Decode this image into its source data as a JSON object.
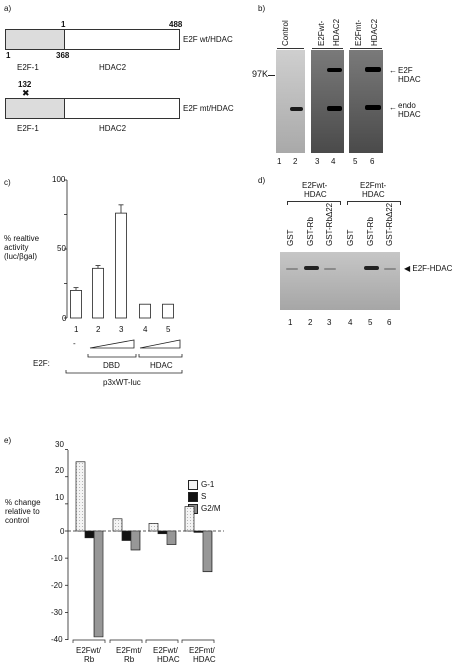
{
  "panel_a": {
    "label": "a)",
    "wt_start": "1",
    "wt_end": "488",
    "wt_junction": "368",
    "wt_start_bottom": "1",
    "wt_left_label": "E2F-1",
    "wt_right_label": "HDAC2",
    "wt_name": "E2F wt/HDAC",
    "mt_mutation": "132",
    "mt_mark": "✖",
    "mt_left_label": "E2F-1",
    "mt_right_label": "HDAC2",
    "mt_name": "E2F mt/HDAC"
  },
  "panel_b": {
    "label": "b)",
    "lanes": [
      "Control",
      "E2Fwt-",
      "HDAC2",
      "E2Fmt-",
      "HDAC2"
    ],
    "marker": "97K",
    "right_label_1a": "E2F",
    "right_label_1b": "HDAC",
    "right_label_2a": "endo",
    "right_label_2b": "HDAC",
    "lane_numbers": [
      "1",
      "2",
      "3",
      "4",
      "5",
      "6"
    ]
  },
  "panel_c": {
    "label": "c)",
    "ylabel": [
      "% realtive",
      "activity",
      "(luc/βgal)"
    ],
    "yticks": [
      "100",
      "50",
      "0"
    ],
    "lane_numbers": [
      "1",
      "2",
      "3",
      "4",
      "5"
    ],
    "dash": "-",
    "e2f_label": "E2F:",
    "group_dbd": "DBD",
    "group_hdac": "HDAC",
    "reporter": "p3xWT-luc",
    "values": [
      20,
      36,
      76,
      10,
      10
    ],
    "errors": [
      2,
      2,
      6,
      0,
      0
    ]
  },
  "panel_d": {
    "label": "d)",
    "group1": [
      "E2Fwt-",
      "HDAC"
    ],
    "group2": [
      "E2Fmt-",
      "HDAC"
    ],
    "lanes": [
      "GST",
      "GST-Rb",
      "GST-RbΔ22",
      "GST",
      "GST-Rb",
      "GST-RbΔ22"
    ],
    "band_label": "◀ E2F-HDAC",
    "lane_numbers": [
      "1",
      "2",
      "3",
      "4",
      "5",
      "6"
    ]
  },
  "panel_e": {
    "label": "e)",
    "ylabel": [
      "% change",
      "relative to",
      "control"
    ],
    "yticks": [
      "30",
      "20",
      "10",
      "0",
      "-10",
      "-20",
      "-30",
      "-40"
    ],
    "legend": [
      "G-1",
      "S",
      "G2/M"
    ],
    "groups": [
      [
        "E2Fwt/",
        "Rb"
      ],
      [
        "E2Fmt/",
        "Rb"
      ],
      [
        "E2Fwt/",
        "HDAC"
      ],
      [
        "E2Fmt/",
        "HDAC"
      ]
    ]
  },
  "chart_data": [
    {
      "type": "bar",
      "categories": [
        "1",
        "2",
        "3",
        "4",
        "5"
      ],
      "values": [
        20,
        36,
        76,
        10,
        10
      ],
      "errors": [
        2,
        2,
        6,
        0,
        0
      ],
      "title": "",
      "xlabel": "",
      "ylabel": "% realtive activity (luc/βgal)",
      "ylim": [
        0,
        100
      ],
      "grid": false
    },
    {
      "type": "bar",
      "categories": [
        "E2Fwt/Rb",
        "E2Fmt/Rb",
        "E2Fwt/HDAC",
        "E2Fmt/HDAC"
      ],
      "series": [
        {
          "name": "G-1",
          "values": [
            25.5,
            4.5,
            2.8,
            9
          ]
        },
        {
          "name": "S",
          "values": [
            -2.5,
            -3.5,
            -1,
            -0.5
          ]
        },
        {
          "name": "G2/M",
          "values": [
            -39,
            -7,
            -5,
            -15
          ]
        }
      ],
      "title": "",
      "xlabel": "",
      "ylabel": "% change relative to control",
      "ylim": [
        -40,
        30
      ],
      "legend": "top-right",
      "grid": false
    }
  ]
}
